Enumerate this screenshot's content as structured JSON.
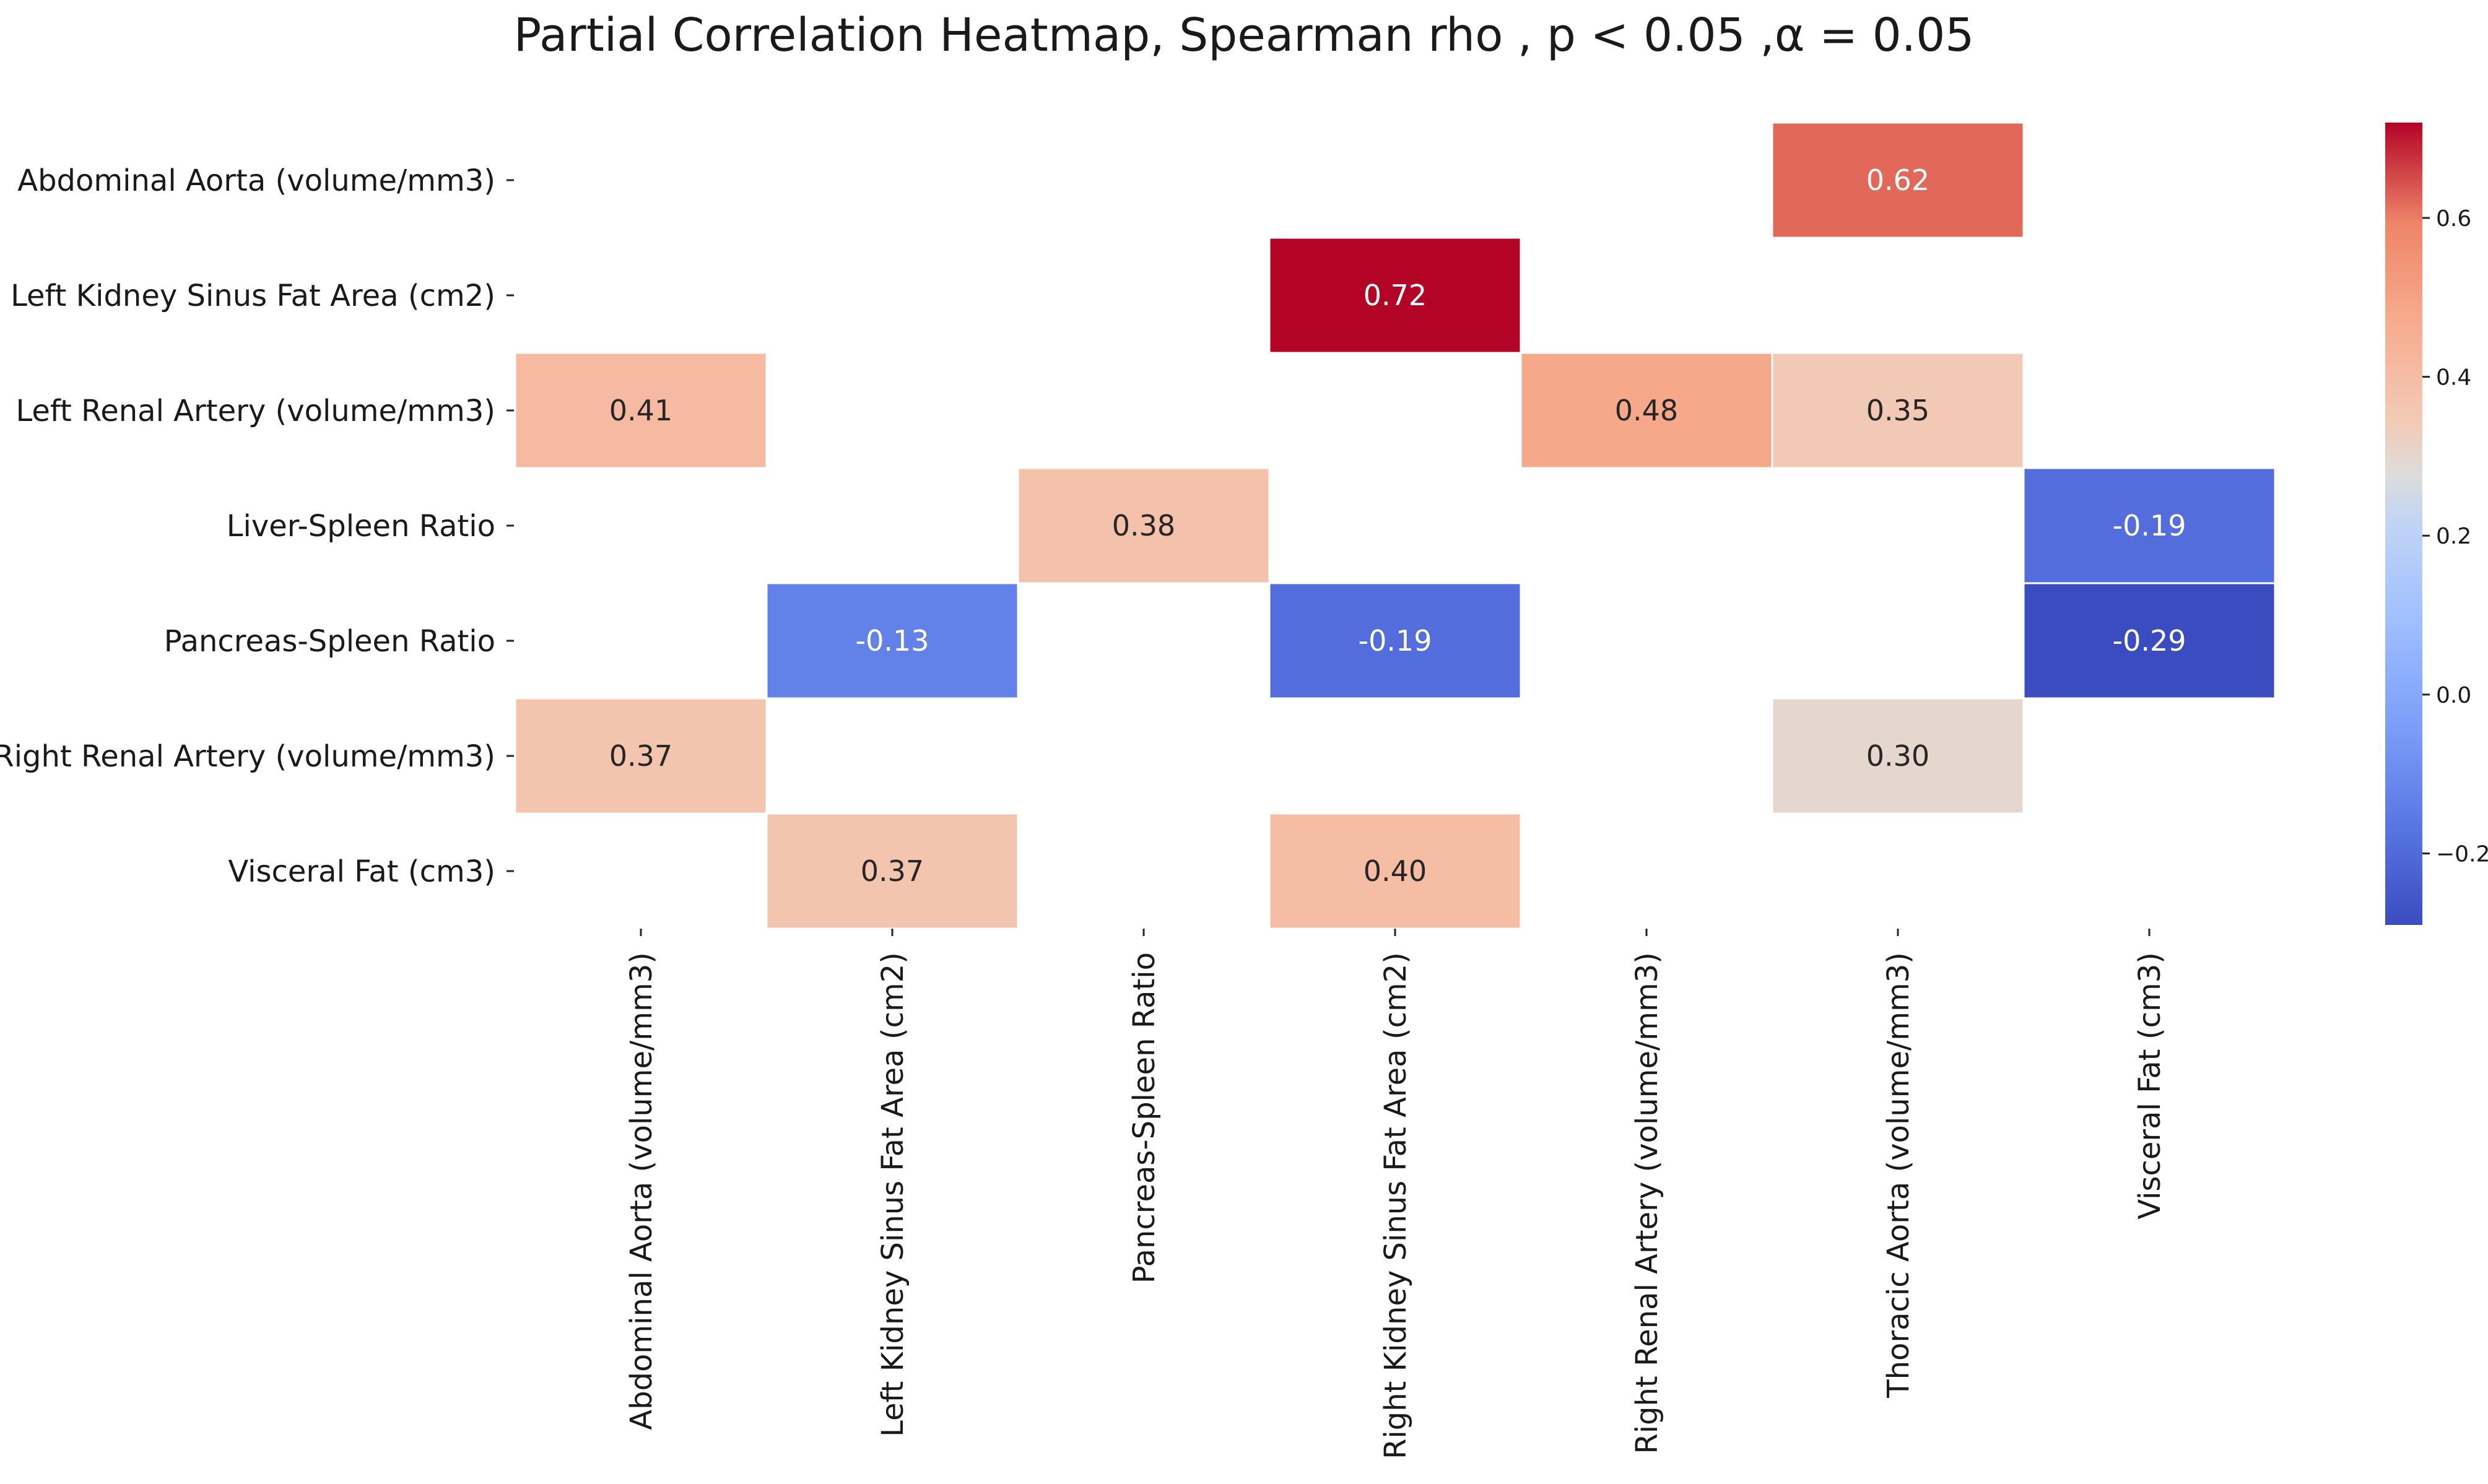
{
  "chart_data": {
    "type": "heatmap",
    "title": "Partial Correlation Heatmap, Spearman rho , p < 0.05 ,α = 0.05",
    "rows": [
      "Abdominal Aorta (volume/mm3)",
      "Left Kidney Sinus Fat Area (cm2)",
      "Left Renal Artery (volume/mm3)",
      "Liver-Spleen Ratio",
      "Pancreas-Spleen Ratio",
      "Right Renal Artery (volume/mm3)",
      "Visceral Fat (cm3)"
    ],
    "columns": [
      "Abdominal Aorta (volume/mm3)",
      "Left Kidney Sinus Fat Area (cm2)",
      "Pancreas-Spleen Ratio",
      "Right Kidney Sinus Fat Area (cm2)",
      "Right Renal Artery (volume/mm3)",
      "Thoracic Aorta (volume/mm3)",
      "Visceral Fat (cm3)"
    ],
    "values": [
      [
        null,
        null,
        null,
        null,
        null,
        0.62,
        null
      ],
      [
        null,
        null,
        null,
        0.72,
        null,
        null,
        null
      ],
      [
        0.41,
        null,
        null,
        null,
        0.48,
        0.35,
        null
      ],
      [
        null,
        null,
        0.38,
        null,
        null,
        null,
        -0.19
      ],
      [
        null,
        -0.13,
        null,
        -0.19,
        null,
        null,
        -0.29
      ],
      [
        0.37,
        null,
        null,
        null,
        null,
        0.3,
        null
      ],
      [
        null,
        0.37,
        null,
        0.4,
        null,
        null,
        null
      ]
    ],
    "colorscale": "coolwarm",
    "vmin": -0.29,
    "vmax": 0.72,
    "colorbar_ticks": [
      -0.2,
      0.0,
      0.2,
      0.4,
      0.6
    ],
    "colorbar_tick_labels": [
      "−0.2",
      "0.0",
      "0.2",
      "0.4",
      "0.6"
    ],
    "value_format": "2f",
    "legend": "colorbar-right"
  }
}
